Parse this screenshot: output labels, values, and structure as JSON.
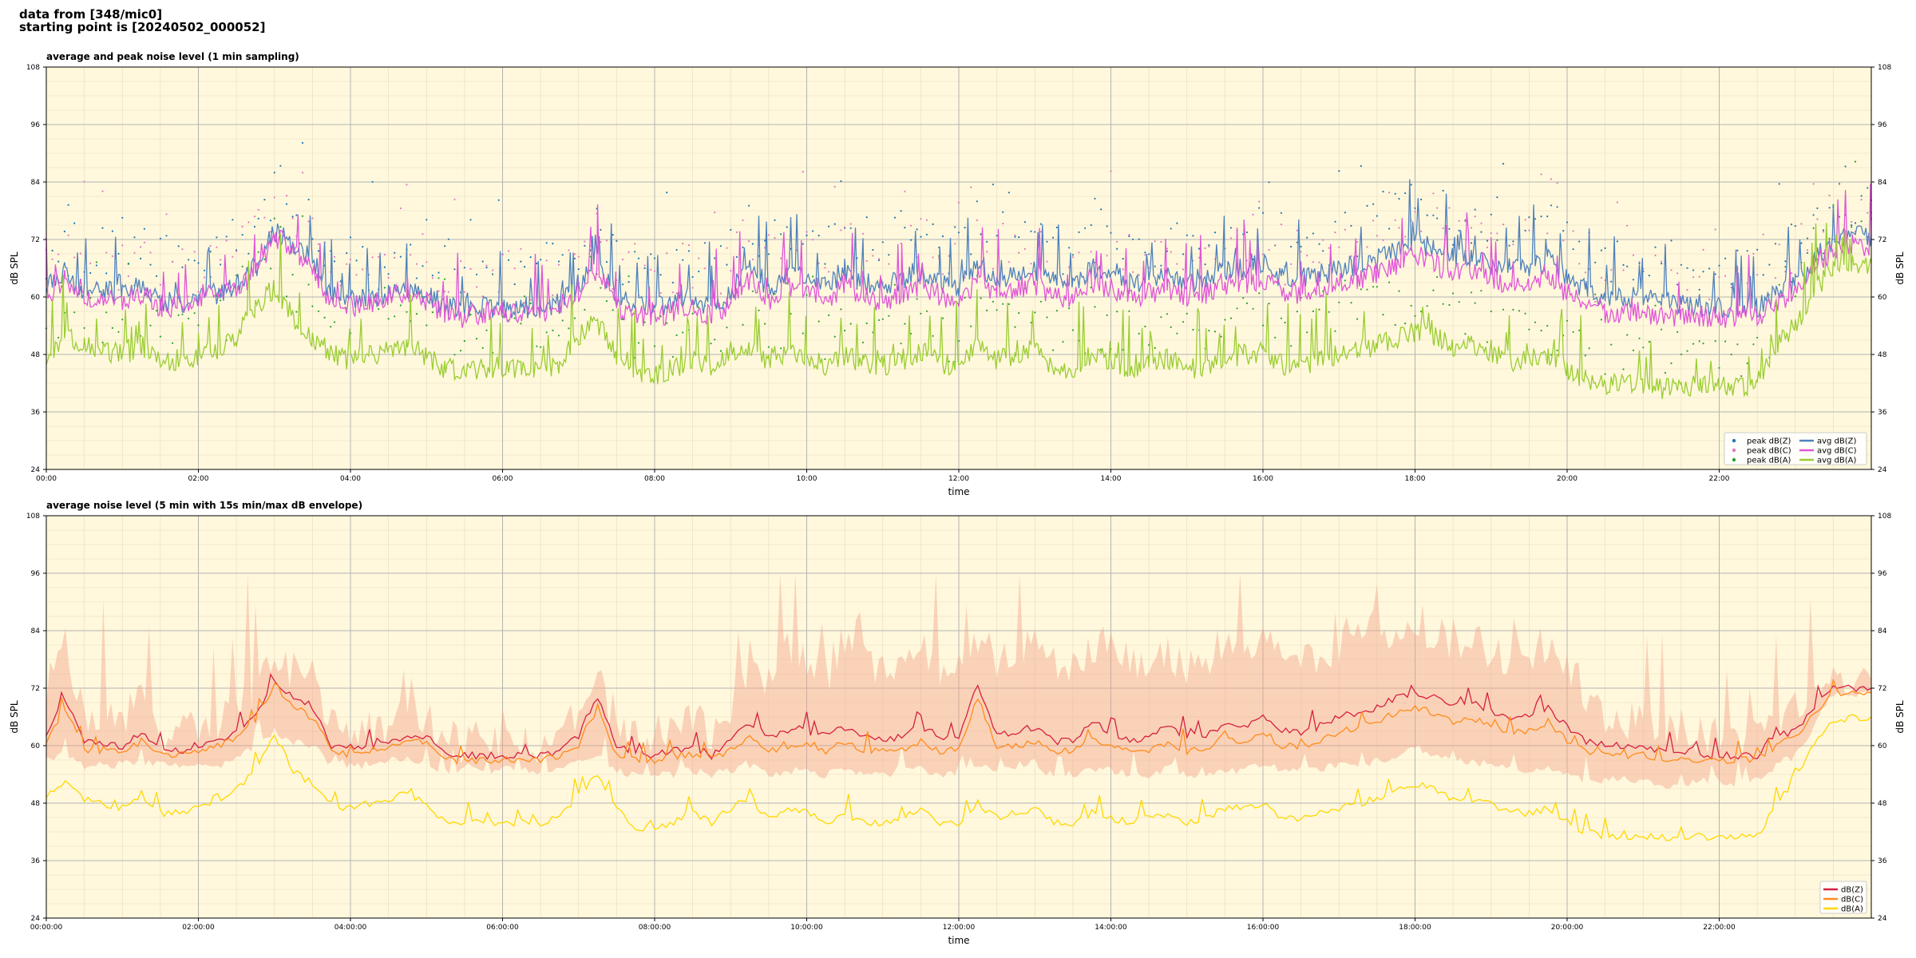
{
  "header": {
    "line1": "data from [348/mic0]",
    "line2": "starting point is [20240502_000052]"
  },
  "chart_data": [
    {
      "type": "line",
      "title": "average and peak noise level (1 min sampling)",
      "xlabel": "time",
      "ylabel": "dB SPL",
      "xlim_hours": [
        0,
        24
      ],
      "ylim": [
        24,
        108
      ],
      "yticks": [
        24,
        36,
        48,
        60,
        72,
        84,
        96,
        108
      ],
      "xtick_labels": [
        "00:00",
        "02:00",
        "04:00",
        "06:00",
        "08:00",
        "10:00",
        "12:00",
        "14:00",
        "16:00",
        "18:00",
        "20:00",
        "22:00"
      ],
      "grid": true,
      "legend_position": "bottom-right",
      "legend_entries": [
        {
          "label": "peak dB(Z)",
          "marker": "dot",
          "color": "#1f77b4"
        },
        {
          "label": "peak dB(C)",
          "marker": "dot",
          "color": "#e377c2"
        },
        {
          "label": "peak dB(A)",
          "marker": "dot",
          "color": "#2ca02c"
        },
        {
          "label": "avg dB(Z)",
          "marker": "line",
          "color": "#4f81bd"
        },
        {
          "label": "avg dB(C)",
          "marker": "line",
          "color": "#e055d8"
        },
        {
          "label": "avg dB(A)",
          "marker": "line",
          "color": "#9acd32"
        }
      ],
      "x_hours": [
        0,
        0.25,
        0.5,
        0.75,
        1,
        1.25,
        1.5,
        1.75,
        2,
        2.25,
        2.5,
        2.75,
        3,
        3.25,
        3.5,
        3.75,
        4,
        4.25,
        4.5,
        4.75,
        5,
        5.25,
        5.5,
        5.75,
        6,
        6.25,
        6.5,
        6.75,
        7,
        7.25,
        7.5,
        7.75,
        8,
        8.25,
        8.5,
        8.75,
        9,
        9.25,
        9.5,
        9.75,
        10,
        10.25,
        10.5,
        10.75,
        11,
        11.25,
        11.5,
        11.75,
        12,
        12.25,
        12.5,
        12.75,
        13,
        13.25,
        13.5,
        13.75,
        14,
        14.25,
        14.5,
        14.75,
        15,
        15.25,
        15.5,
        15.75,
        16,
        16.25,
        16.5,
        16.75,
        17,
        17.25,
        17.5,
        17.75,
        18,
        18.25,
        18.5,
        18.75,
        19,
        19.25,
        19.5,
        19.75,
        20,
        20.25,
        20.5,
        20.75,
        21,
        21.25,
        21.5,
        21.75,
        22,
        22.25,
        22.5,
        22.75,
        23,
        23.25,
        23.5,
        23.75,
        24
      ],
      "series": [
        {
          "name": "avg dB(Z)",
          "color": "#4f81bd",
          "values": [
            62,
            66,
            61,
            62,
            61,
            63,
            59,
            59,
            60,
            61,
            63,
            66,
            74,
            71,
            68,
            60,
            60,
            60,
            61,
            62,
            61,
            58,
            58,
            58,
            58,
            58,
            58,
            59,
            62,
            68,
            60,
            58,
            58,
            59,
            60,
            58,
            61,
            67,
            62,
            65,
            64,
            62,
            66,
            63,
            62,
            64,
            66,
            63,
            62,
            67,
            64,
            65,
            66,
            63,
            63,
            66,
            65,
            63,
            64,
            65,
            63,
            64,
            66,
            66,
            67,
            64,
            64,
            65,
            66,
            67,
            68,
            70,
            72,
            70,
            68,
            69,
            67,
            66,
            66,
            68,
            64,
            62,
            60,
            60,
            60,
            59,
            59,
            58,
            58,
            58,
            58,
            61,
            63,
            68,
            72,
            73,
            73
          ]
        },
        {
          "name": "avg dB(C)",
          "color": "#e055d8",
          "values": [
            60,
            64,
            59,
            60,
            59,
            61,
            58,
            58,
            59,
            60,
            62,
            65,
            73,
            70,
            66,
            59,
            58,
            59,
            60,
            61,
            59,
            56,
            56,
            57,
            57,
            57,
            56,
            58,
            61,
            66,
            58,
            56,
            56,
            57,
            58,
            56,
            59,
            64,
            59,
            62,
            61,
            59,
            63,
            60,
            59,
            61,
            63,
            60,
            59,
            64,
            61,
            62,
            63,
            60,
            60,
            63,
            62,
            60,
            61,
            62,
            60,
            61,
            63,
            63,
            64,
            61,
            61,
            62,
            63,
            64,
            65,
            67,
            69,
            67,
            65,
            66,
            64,
            63,
            63,
            65,
            61,
            59,
            57,
            57,
            57,
            56,
            56,
            56,
            56,
            56,
            56,
            59,
            61,
            67,
            70,
            71,
            71
          ]
        },
        {
          "name": "avg dB(A)",
          "color": "#9acd32",
          "values": [
            48,
            52,
            50,
            49,
            48,
            50,
            47,
            47,
            48,
            49,
            52,
            58,
            62,
            56,
            52,
            48,
            47,
            48,
            49,
            50,
            48,
            45,
            45,
            45,
            45,
            45,
            45,
            46,
            52,
            55,
            48,
            44,
            44,
            45,
            47,
            45,
            48,
            50,
            47,
            49,
            48,
            46,
            48,
            46,
            46,
            47,
            49,
            46,
            46,
            50,
            47,
            48,
            49,
            45,
            45,
            48,
            47,
            45,
            46,
            47,
            45,
            46,
            48,
            48,
            49,
            46,
            46,
            47,
            48,
            49,
            50,
            51,
            53,
            52,
            50,
            50,
            49,
            47,
            47,
            48,
            45,
            43,
            42,
            42,
            42,
            41,
            41,
            42,
            42,
            41,
            42,
            50,
            54,
            62,
            66,
            67,
            67
          ]
        }
      ]
    },
    {
      "type": "line",
      "title": "average noise level (5 min with 15s min/max dB envelope)",
      "xlabel": "time",
      "ylabel": "dB SPL",
      "xlim_hours": [
        0,
        24
      ],
      "ylim": [
        24,
        108
      ],
      "yticks": [
        24,
        36,
        48,
        60,
        72,
        84,
        96,
        108
      ],
      "xtick_labels": [
        "00:00:00",
        "02:00:00",
        "04:00:00",
        "06:00:00",
        "08:00:00",
        "10:00:00",
        "12:00:00",
        "14:00:00",
        "16:00:00",
        "18:00:00",
        "20:00:00",
        "22:00:00"
      ],
      "grid": true,
      "legend_position": "bottom-right",
      "legend_entries": [
        {
          "label": "dB(Z)",
          "color": "#d62040"
        },
        {
          "label": "dB(C)",
          "color": "#ff8c1a"
        },
        {
          "label": "dB(A)",
          "color": "#ffd700"
        }
      ],
      "envelope_color": "#f4a48c",
      "x_hours": [
        0,
        0.25,
        0.5,
        0.75,
        1,
        1.25,
        1.5,
        1.75,
        2,
        2.25,
        2.5,
        2.75,
        3,
        3.25,
        3.5,
        3.75,
        4,
        4.25,
        4.5,
        4.75,
        5,
        5.25,
        5.5,
        5.75,
        6,
        6.25,
        6.5,
        6.75,
        7,
        7.25,
        7.5,
        7.75,
        8,
        8.25,
        8.5,
        8.75,
        9,
        9.25,
        9.5,
        9.75,
        10,
        10.25,
        10.5,
        10.75,
        11,
        11.25,
        11.5,
        11.75,
        12,
        12.25,
        12.5,
        12.75,
        13,
        13.25,
        13.5,
        13.75,
        14,
        14.25,
        14.5,
        14.75,
        15,
        15.25,
        15.5,
        15.75,
        16,
        16.25,
        16.5,
        16.75,
        17,
        17.25,
        17.5,
        17.75,
        18,
        18.25,
        18.5,
        18.75,
        19,
        19.25,
        19.5,
        19.75,
        20,
        20.25,
        20.5,
        20.75,
        21,
        21.25,
        21.5,
        21.75,
        22,
        22.25,
        22.5,
        22.75,
        23,
        23.25,
        23.5,
        23.75,
        24
      ],
      "envelope_max": [
        72,
        80,
        68,
        67,
        67,
        70,
        63,
        63,
        64,
        66,
        68,
        72,
        80,
        76,
        74,
        64,
        63,
        64,
        65,
        68,
        66,
        61,
        61,
        61,
        61,
        61,
        61,
        63,
        68,
        74,
        64,
        62,
        62,
        64,
        66,
        63,
        67,
        78,
        74,
        80,
        79,
        75,
        82,
        77,
        75,
        78,
        82,
        77,
        75,
        84,
        79,
        80,
        82,
        77,
        77,
        82,
        80,
        77,
        79,
        80,
        77,
        79,
        82,
        82,
        84,
        79,
        79,
        80,
        82,
        84,
        84,
        86,
        86,
        84,
        82,
        83,
        80,
        79,
        79,
        82,
        77,
        72,
        66,
        66,
        66,
        64,
        64,
        62,
        62,
        62,
        62,
        66,
        67,
        73,
        73,
        74,
        74
      ],
      "envelope_min": [
        57,
        58,
        56,
        56,
        56,
        57,
        56,
        56,
        56,
        56,
        57,
        60,
        63,
        61,
        60,
        56,
        56,
        56,
        57,
        57,
        56,
        55,
        55,
        55,
        55,
        55,
        55,
        55,
        57,
        58,
        55,
        54,
        54,
        54,
        55,
        54,
        55,
        56,
        54,
        55,
        55,
        54,
        55,
        54,
        54,
        55,
        55,
        54,
        54,
        56,
        55,
        55,
        55,
        54,
        54,
        55,
        55,
        54,
        54,
        55,
        54,
        54,
        55,
        55,
        56,
        55,
        55,
        55,
        56,
        56,
        57,
        58,
        60,
        58,
        57,
        57,
        56,
        55,
        55,
        56,
        54,
        53,
        53,
        53,
        53,
        52,
        52,
        53,
        53,
        52,
        53,
        56,
        58,
        64,
        71,
        71,
        71
      ],
      "series": [
        {
          "name": "dB(Z)",
          "color": "#d62040",
          "values": [
            62,
            70,
            61,
            60,
            60,
            63,
            59,
            59,
            60,
            61,
            63,
            66,
            74,
            70,
            68,
            60,
            60,
            60,
            61,
            62,
            62,
            58,
            58,
            58,
            58,
            58,
            58,
            59,
            62,
            70,
            60,
            58,
            58,
            59,
            60,
            58,
            61,
            65,
            62,
            63,
            63,
            62,
            64,
            62,
            61,
            62,
            64,
            62,
            62,
            73,
            62,
            63,
            64,
            61,
            61,
            65,
            63,
            61,
            62,
            64,
            62,
            62,
            65,
            64,
            66,
            63,
            63,
            64,
            66,
            67,
            68,
            70,
            71,
            70,
            68,
            69,
            67,
            66,
            66,
            68,
            64,
            61,
            60,
            60,
            60,
            59,
            59,
            58,
            58,
            58,
            58,
            62,
            63,
            68,
            72,
            72,
            72
          ]
        },
        {
          "name": "dB(C)",
          "color": "#ff8c1a",
          "values": [
            61,
            68,
            59,
            59,
            59,
            61,
            58,
            58,
            59,
            60,
            62,
            65,
            73,
            68,
            66,
            59,
            58,
            59,
            60,
            61,
            61,
            57,
            57,
            57,
            57,
            57,
            57,
            58,
            60,
            68,
            58,
            57,
            57,
            58,
            58,
            57,
            59,
            62,
            59,
            60,
            60,
            59,
            61,
            59,
            59,
            59,
            61,
            59,
            59,
            70,
            60,
            60,
            61,
            59,
            59,
            62,
            60,
            59,
            59,
            61,
            59,
            59,
            62,
            61,
            63,
            60,
            60,
            61,
            63,
            64,
            65,
            67,
            68,
            67,
            65,
            66,
            64,
            63,
            63,
            65,
            61,
            59,
            58,
            58,
            58,
            57,
            57,
            57,
            57,
            57,
            57,
            60,
            62,
            67,
            71,
            71,
            71
          ]
        },
        {
          "name": "dB(A)",
          "color": "#ffd700",
          "values": [
            49,
            53,
            49,
            48,
            47,
            50,
            46,
            46,
            47,
            48,
            51,
            55,
            62,
            55,
            52,
            47,
            47,
            48,
            49,
            50,
            48,
            44,
            44,
            44,
            44,
            44,
            44,
            45,
            50,
            54,
            47,
            43,
            43,
            44,
            46,
            44,
            47,
            49,
            45,
            47,
            46,
            44,
            46,
            44,
            44,
            45,
            47,
            44,
            44,
            48,
            45,
            46,
            47,
            44,
            44,
            46,
            45,
            44,
            45,
            46,
            44,
            45,
            47,
            47,
            48,
            45,
            45,
            46,
            47,
            48,
            49,
            51,
            52,
            51,
            49,
            49,
            48,
            46,
            46,
            47,
            44,
            42,
            41,
            41,
            41,
            41,
            41,
            41,
            41,
            41,
            41,
            48,
            53,
            61,
            65,
            66,
            66
          ]
        }
      ]
    }
  ]
}
